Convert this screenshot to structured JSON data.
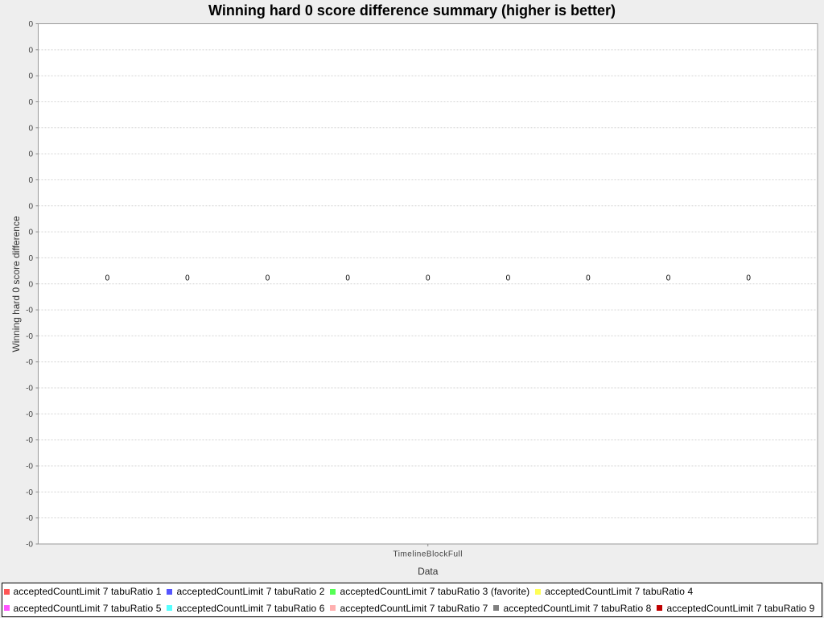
{
  "chart_data": {
    "type": "bar",
    "title": "Winning hard 0 score difference summary (higher is better)",
    "xlabel": "Data",
    "ylabel": "Winning hard 0 score difference",
    "categories": [
      "TimelineBlockFull"
    ],
    "y_tick_labels": [
      "-0",
      "-0",
      "-0",
      "-0",
      "-0",
      "-0",
      "-0",
      "-0",
      "-0",
      "-0",
      "0",
      "0",
      "0",
      "0",
      "0",
      "0",
      "0",
      "0",
      "0",
      "0",
      "0"
    ],
    "grid": true,
    "legend": "bottom",
    "data_labels": true,
    "series": [
      {
        "name": "acceptedCountLimit 7 tabuRatio 1",
        "color": "#FF5555",
        "values": [
          0
        ]
      },
      {
        "name": "acceptedCountLimit 7 tabuRatio 2",
        "color": "#5555FF",
        "values": [
          0
        ]
      },
      {
        "name": "acceptedCountLimit 7 tabuRatio 3 (favorite)",
        "color": "#55FF55",
        "values": [
          0
        ]
      },
      {
        "name": "acceptedCountLimit 7 tabuRatio 4",
        "color": "#FFFF55",
        "values": [
          0
        ]
      },
      {
        "name": "acceptedCountLimit 7 tabuRatio 5",
        "color": "#FF55FF",
        "values": [
          0
        ]
      },
      {
        "name": "acceptedCountLimit 7 tabuRatio 6",
        "color": "#55FFFF",
        "values": [
          0
        ]
      },
      {
        "name": "acceptedCountLimit 7 tabuRatio 7",
        "color": "#FFAFAF",
        "values": [
          0
        ]
      },
      {
        "name": "acceptedCountLimit 7 tabuRatio 8",
        "color": "#808080",
        "values": [
          0
        ]
      },
      {
        "name": "acceptedCountLimit 7 tabuRatio 9",
        "color": "#C00000",
        "values": [
          0
        ]
      }
    ]
  }
}
